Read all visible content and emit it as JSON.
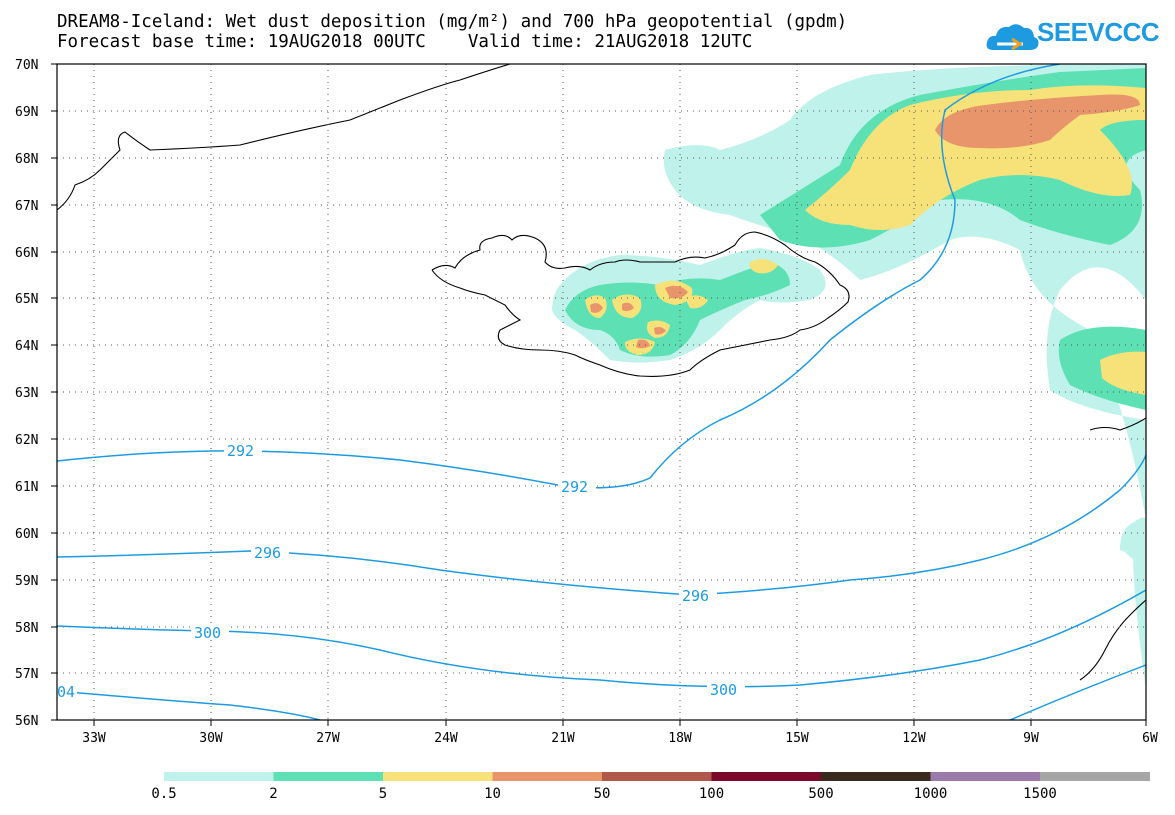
{
  "header": {
    "title_line1": "DREAM8-Iceland: Wet dust deposition (mg/m²) and 700 hPa geopotential (gpdm)",
    "title_line2": "Forecast base time: 19AUG2018 00UTC    Valid time: 21AUG2018 12UTC"
  },
  "logo": {
    "text": "SEEVCCC",
    "color": "#1e9be0"
  },
  "map": {
    "lat_labels": [
      "70N",
      "69N",
      "68N",
      "67N",
      "66N",
      "65N",
      "64N",
      "63N",
      "62N",
      "61N",
      "60N",
      "59N",
      "58N",
      "57N",
      "56N"
    ],
    "lon_labels": [
      "33W",
      "30W",
      "27W",
      "24W",
      "21W",
      "18W",
      "15W",
      "12W",
      "9W",
      "6W"
    ],
    "contour_color": "#1e9be0",
    "contour_labels": [
      "292",
      "292",
      "296",
      "296",
      "300",
      "300",
      "04"
    ]
  },
  "colorbar": {
    "colors": [
      "#bff2ea",
      "#5ce0b4",
      "#f7e27a",
      "#e8956c",
      "#b0594a",
      "#7b0a2a",
      "#3a2a1e",
      "#9a7aa8",
      "#a6a6a6"
    ],
    "labels": [
      "0.5",
      "2",
      "5",
      "10",
      "50",
      "100",
      "500",
      "1000",
      "1500"
    ]
  }
}
